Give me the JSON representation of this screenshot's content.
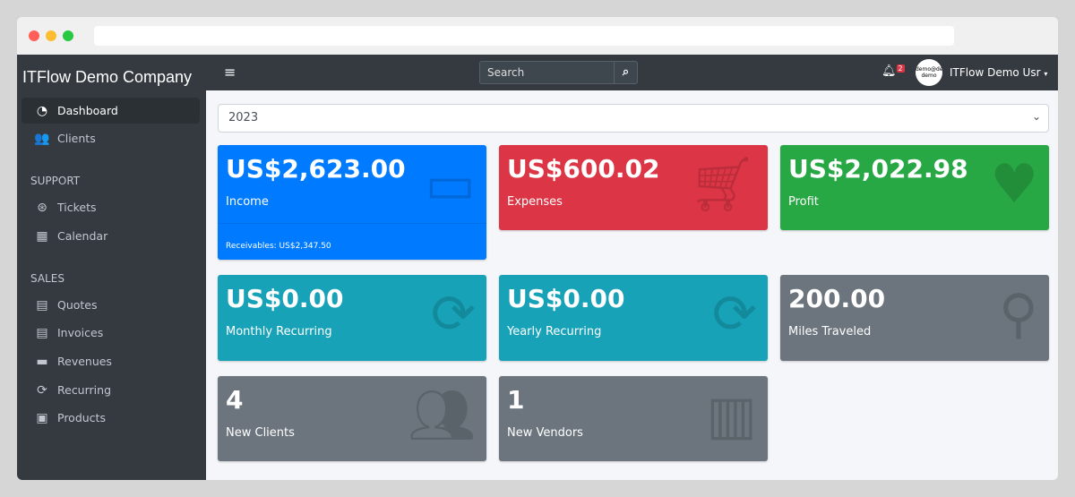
{
  "sidebar": {
    "brand": "ITFlow Demo Company",
    "items": [
      {
        "label": "Dashboard",
        "icon": "tachometer-icon"
      },
      {
        "label": "Clients",
        "icon": "users-icon"
      },
      {
        "label": "Tickets",
        "icon": "life-ring-icon"
      },
      {
        "label": "Calendar",
        "icon": "calendar-icon"
      },
      {
        "label": "Quotes",
        "icon": "file-icon"
      },
      {
        "label": "Invoices",
        "icon": "invoice-icon"
      },
      {
        "label": "Revenues",
        "icon": "credit-card-icon"
      },
      {
        "label": "Recurring",
        "icon": "sync-icon"
      },
      {
        "label": "Products",
        "icon": "box-icon"
      }
    ],
    "headers": {
      "support": "SUPPORT",
      "sales": "SALES"
    }
  },
  "topbar": {
    "search_placeholder": "Search",
    "notifications": "2",
    "avatar_text": "demo@demo demo",
    "user": "ITFlow Demo Usr"
  },
  "year": "2023",
  "cards": [
    {
      "value": "US$2,623.00",
      "label": "Income",
      "footer": "Receivables: US$2,347.50",
      "color": "#007bff"
    },
    {
      "value": "US$600.02",
      "label": "Expenses",
      "color": "#dc3545"
    },
    {
      "value": "US$2,022.98",
      "label": "Profit",
      "color": "#28a745"
    },
    {
      "value": "US$0.00",
      "label": "Monthly Recurring",
      "color": "#17a2b8"
    },
    {
      "value": "US$0.00",
      "label": "Yearly Recurring",
      "color": "#17a2b8"
    },
    {
      "value": "200.00",
      "label": "Miles Traveled",
      "color": "#6c757d"
    },
    {
      "value": "4",
      "label": "New Clients",
      "color": "#6c757d"
    },
    {
      "value": "1",
      "label": "New Vendors",
      "color": "#6c757d"
    }
  ]
}
